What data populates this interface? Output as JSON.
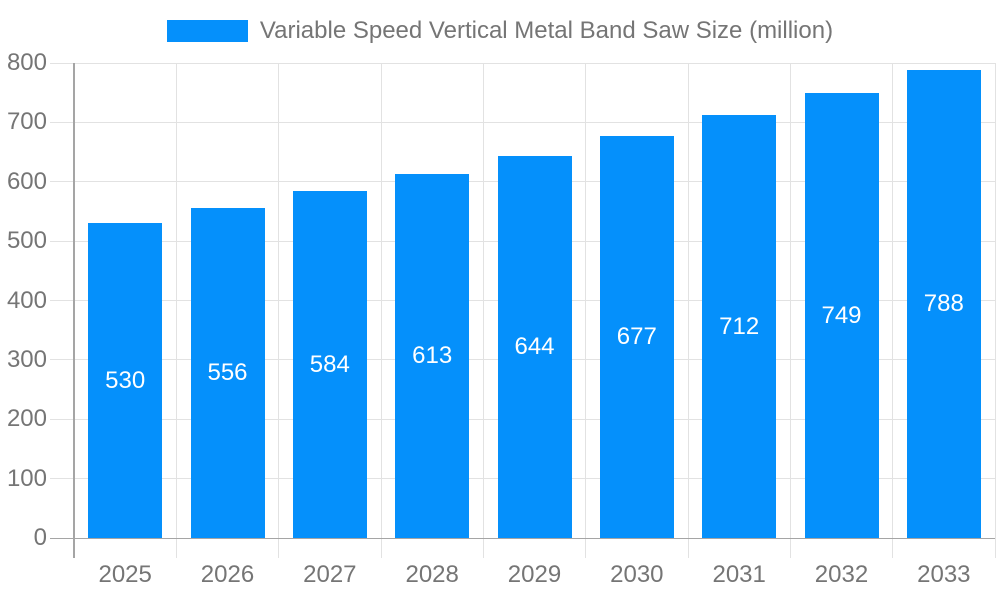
{
  "chart_data": {
    "type": "bar",
    "title": "Variable Speed Vertical Metal Band Saw Size (million)",
    "legend": [
      "Variable Speed Vertical Metal Band Saw Size (million)"
    ],
    "legend_position": "top-center",
    "categories": [
      "2025",
      "2026",
      "2027",
      "2028",
      "2029",
      "2030",
      "2031",
      "2032",
      "2033"
    ],
    "series": [
      {
        "name": "Variable Speed Vertical Metal Band Saw Size (million)",
        "values": [
          530,
          556,
          584,
          613,
          644,
          677,
          712,
          749,
          788
        ]
      }
    ],
    "bar_value_labels": [
      "530",
      "556",
      "584",
      "613",
      "644",
      "677",
      "712",
      "749",
      "788"
    ],
    "xlabel": "",
    "ylabel": "",
    "ylim": [
      0,
      800
    ],
    "yticks": [
      0,
      100,
      200,
      300,
      400,
      500,
      600,
      700,
      800
    ],
    "grid": true,
    "colors": {
      "bar": "#0590fb",
      "bar_label_text": "#ffffff",
      "axis_text": "#757575",
      "legend_text": "#757575",
      "grid_line": "#e2e2e2",
      "axis_line": "#a5a5a5",
      "background": "#ffffff"
    }
  }
}
